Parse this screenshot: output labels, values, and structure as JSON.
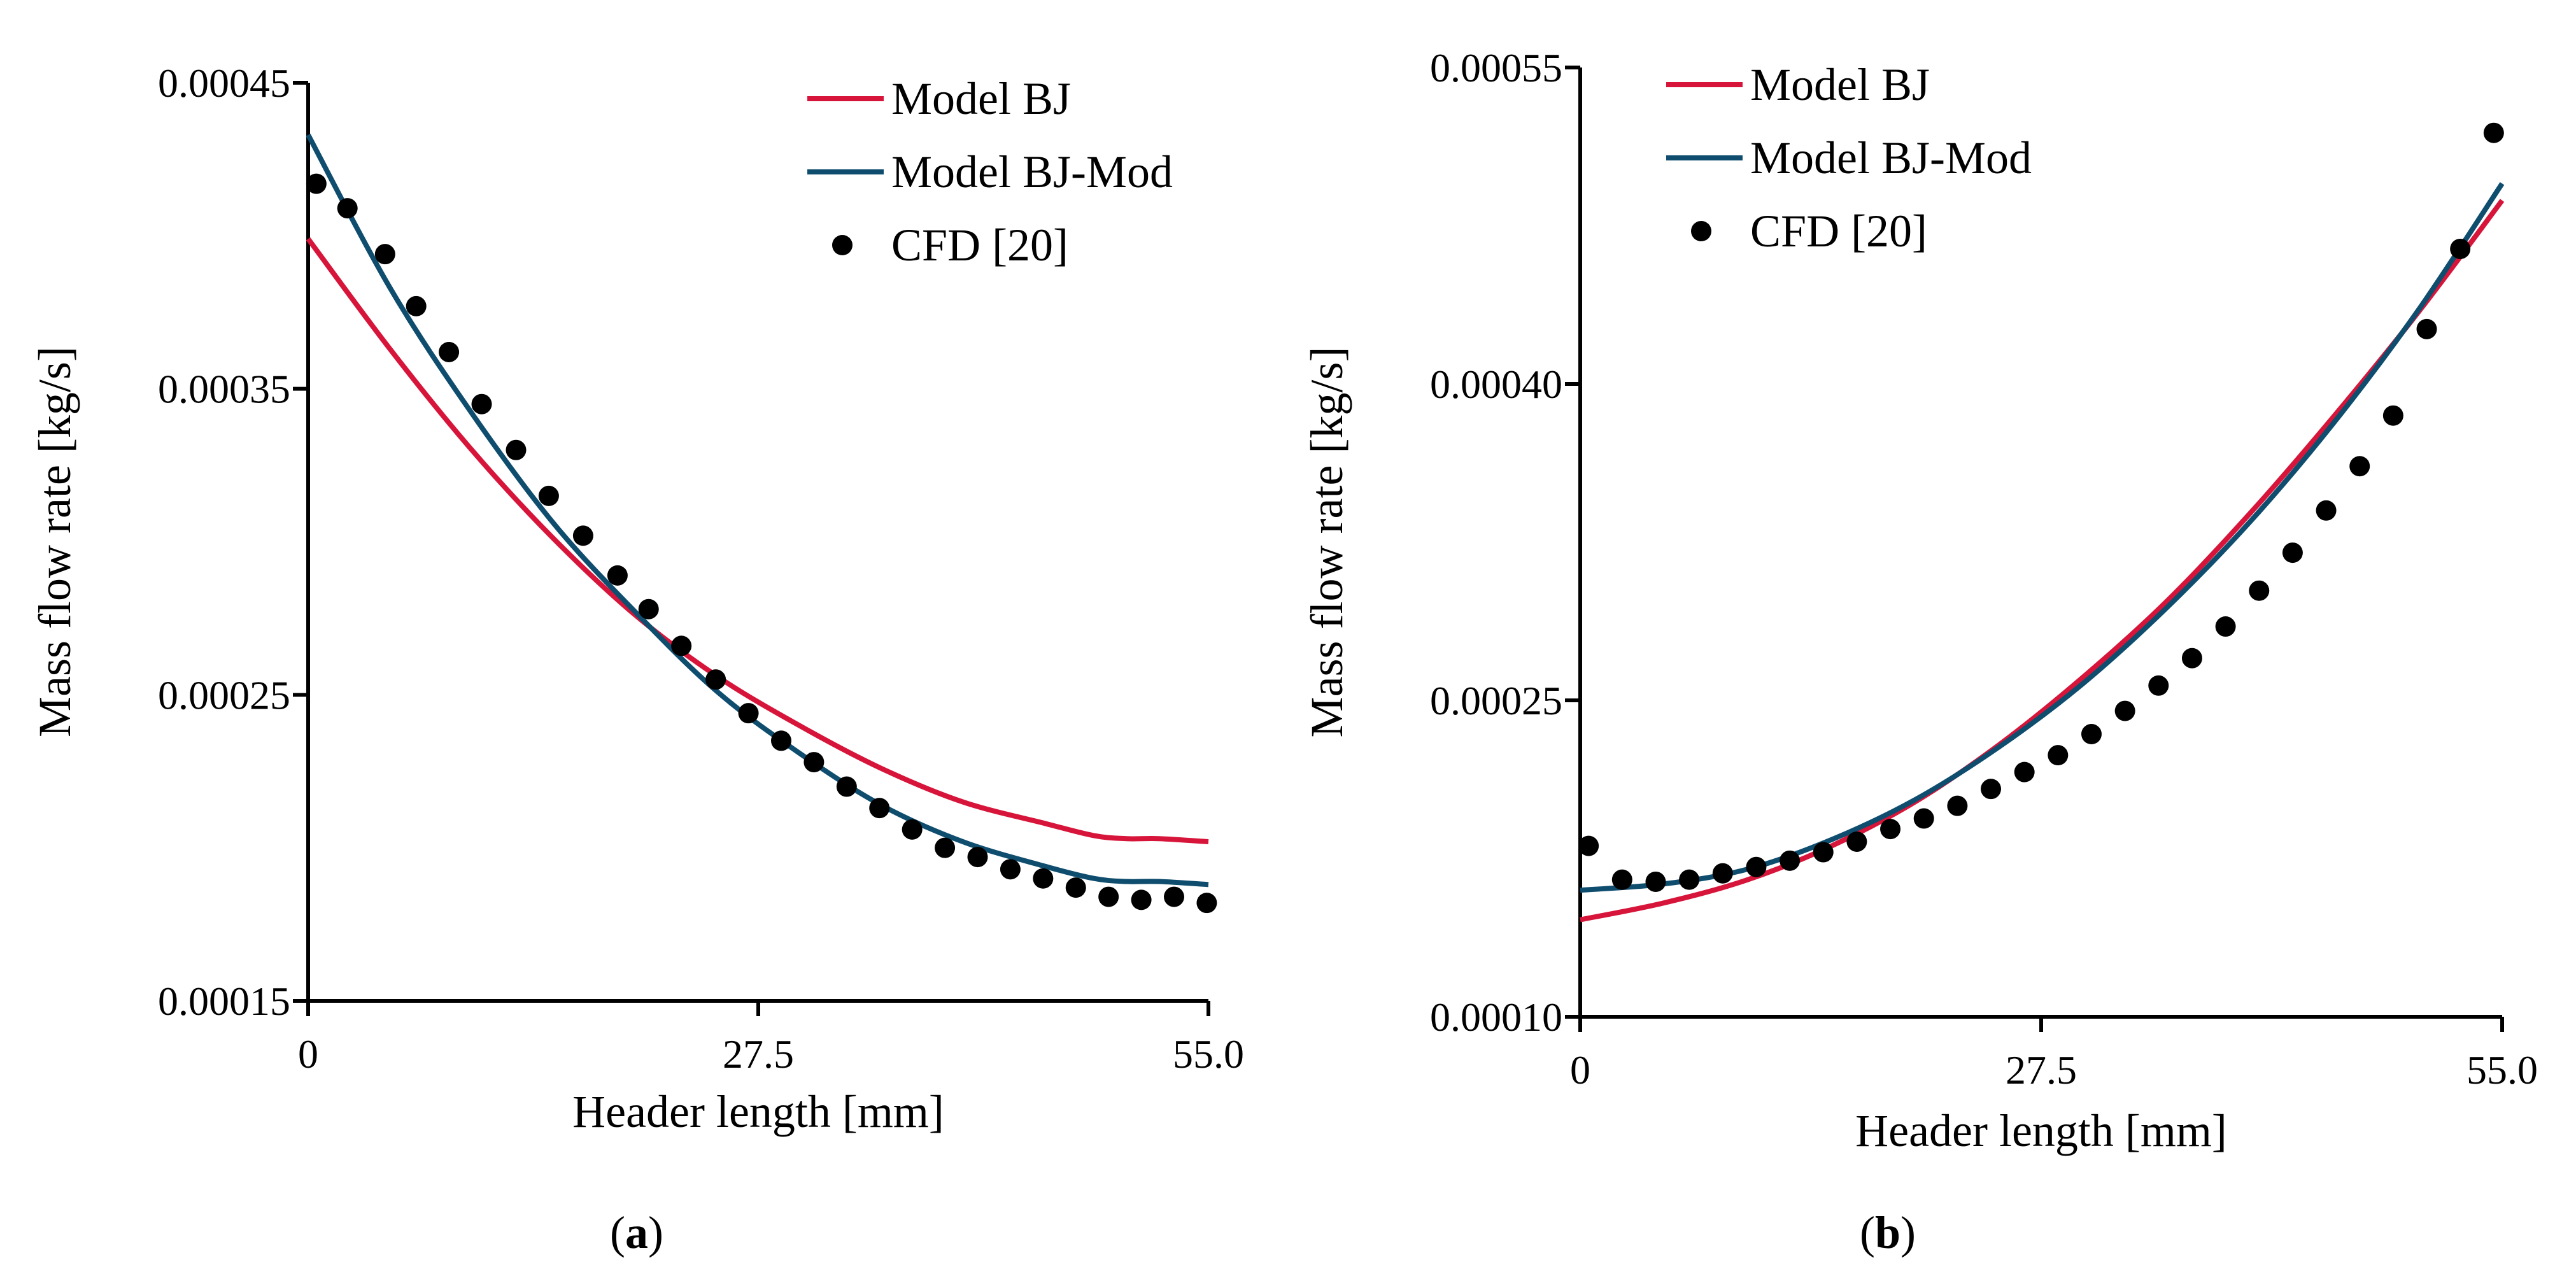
{
  "chart_data": [
    {
      "id": "a",
      "type": "line",
      "title": "",
      "xlabel": "Header length [mm]",
      "ylabel": "Mass flow rate [kg/s]",
      "xlim": [
        0,
        55.0
      ],
      "ylim": [
        0.00015,
        0.00045
      ],
      "xticks": [
        "0",
        "27.5",
        "55.0"
      ],
      "xtick_values": [
        0,
        27.5,
        55.0
      ],
      "yticks": [
        "0.00015",
        "0.00025",
        "0.00035",
        "0.00045"
      ],
      "ytick_values": [
        0.00015,
        0.00025,
        0.00035,
        0.00045
      ],
      "caption": {
        "open": "(",
        "letter": "a",
        "close": ")"
      },
      "legend_position": "top-right",
      "series": [
        {
          "name": "Model BJ",
          "kind": "line",
          "color": "#d7153a",
          "x": [
            0,
            5,
            10,
            15,
            20,
            25,
            30,
            35,
            40,
            45,
            48,
            50,
            52,
            55
          ],
          "y": [
            0.000399,
            0.000363,
            0.00033,
            0.000301,
            0.000276,
            0.000256,
            0.00024,
            0.000226,
            0.000215,
            0.000208,
            0.000204,
            0.000203,
            0.000203,
            0.000202
          ]
        },
        {
          "name": "Model BJ-Mod",
          "kind": "line",
          "color": "#0f4d6e",
          "x": [
            0,
            5,
            10,
            15,
            20,
            25,
            30,
            35,
            40,
            45,
            48,
            50,
            52,
            55
          ],
          "y": [
            0.000433,
            0.000383,
            0.000342,
            0.000306,
            0.000277,
            0.000251,
            0.000231,
            0.000214,
            0.000202,
            0.000194,
            0.00019,
            0.000189,
            0.000189,
            0.000188
          ]
        },
        {
          "name": "CFD [20]",
          "kind": "scatter",
          "color": "#000000",
          "x": [
            0.5,
            2.4,
            4.7,
            6.6,
            8.6,
            10.6,
            12.7,
            14.7,
            16.8,
            18.9,
            20.8,
            22.8,
            24.9,
            26.9,
            28.9,
            30.9,
            32.9,
            34.9,
            36.9,
            38.9,
            40.9,
            42.9,
            44.9,
            46.9,
            48.9,
            50.9,
            52.9,
            54.9
          ],
          "y": [
            0.000417,
            0.000409,
            0.000394,
            0.000377,
            0.000362,
            0.000345,
            0.00033,
            0.000315,
            0.000302,
            0.000289,
            0.000278,
            0.000266,
            0.000255,
            0.000244,
            0.000235,
            0.000228,
            0.00022,
            0.000213,
            0.000206,
            0.0002,
            0.000197,
            0.000193,
            0.00019,
            0.000187,
            0.000184,
            0.000183,
            0.000184,
            0.000182
          ]
        }
      ]
    },
    {
      "id": "b",
      "type": "line",
      "title": "",
      "xlabel": "Header length [mm]",
      "ylabel": "Mass flow rate [kg/s]",
      "xlim": [
        0,
        55.0
      ],
      "ylim": [
        0.0001,
        0.00055
      ],
      "xticks": [
        "0",
        "27.5",
        "55.0"
      ],
      "xtick_values": [
        0,
        27.5,
        55.0
      ],
      "yticks": [
        "0.00010",
        "0.00025",
        "0.00040",
        "0.00055"
      ],
      "ytick_values": [
        0.0001,
        0.00025,
        0.0004,
        0.00055
      ],
      "caption": {
        "open": "(",
        "letter": "b",
        "close": ")"
      },
      "legend_position": "top-left",
      "series": [
        {
          "name": "Model BJ",
          "kind": "line",
          "color": "#d7153a",
          "x": [
            0,
            5,
            10,
            15,
            20,
            25,
            30,
            35,
            40,
            45,
            50,
            55
          ],
          "y": [
            0.000146,
            0.000154,
            0.000165,
            0.000181,
            0.000202,
            0.000229,
            0.000261,
            0.000297,
            0.000339,
            0.000385,
            0.000434,
            0.000487
          ]
        },
        {
          "name": "Model BJ-Mod",
          "kind": "line",
          "color": "#0f4d6e",
          "x": [
            0,
            5,
            10,
            15,
            20,
            25,
            30,
            35,
            40,
            45,
            50,
            55
          ],
          "y": [
            0.00016,
            0.000163,
            0.00017,
            0.000184,
            0.000203,
            0.000228,
            0.000258,
            0.000294,
            0.000335,
            0.000382,
            0.000435,
            0.000495
          ]
        },
        {
          "name": "CFD [20]",
          "kind": "scatter",
          "color": "#000000",
          "x": [
            0.5,
            2.5,
            4.5,
            6.5,
            8.5,
            10.5,
            12.5,
            14.5,
            16.5,
            18.5,
            20.5,
            22.5,
            24.5,
            26.5,
            28.5,
            30.5,
            32.5,
            34.5,
            36.5,
            38.5,
            40.5,
            42.5,
            44.5,
            46.5,
            48.5,
            50.5,
            52.5,
            54.5
          ],
          "y": [
            0.000181,
            0.000165,
            0.000164,
            0.000165,
            0.000168,
            0.000171,
            0.000174,
            0.000178,
            0.000183,
            0.000189,
            0.000194,
            0.0002,
            0.000208,
            0.000216,
            0.000224,
            0.000234,
            0.000245,
            0.000257,
            0.00027,
            0.000285,
            0.000302,
            0.00032,
            0.00034,
            0.000361,
            0.000385,
            0.000426,
            0.000464,
            0.000519
          ]
        }
      ]
    }
  ]
}
